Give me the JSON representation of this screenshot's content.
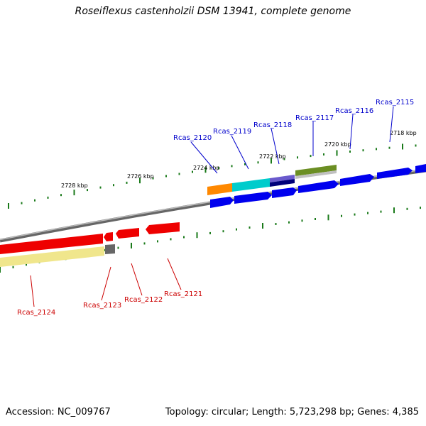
{
  "title": "Roseiflexus castenholzii DSM 13941, complete genome",
  "accession": "Accession: NC_009767",
  "topology": "Topology: circular; Length: 5,723,298 bp; Genes: 4,385",
  "kbp_labels": [
    "2728 kbp",
    "2726 kbp",
    "2724 kbp",
    "2722 kbp",
    "2720 kbp",
    "2718 kbp"
  ],
  "forward_genes": [
    "Rcas_2120",
    "Rcas_2119",
    "Rcas_2118",
    "Rcas_2117",
    "Rcas_2116",
    "Rcas_2115"
  ],
  "reverse_genes": [
    "Rcas_2124",
    "Rcas_2123",
    "Rcas_2122",
    "Rcas_2121"
  ],
  "colors": {
    "forward_label": "#0000cc",
    "reverse_label": "#cc0000",
    "tick": "#1a7a1a",
    "backbone": "#888888",
    "gene_blue": "#0000ee",
    "gene_red": "#ee0000",
    "gene_orange": "#ff8800",
    "gene_cyan": "#00cccc",
    "gene_navy": "#00007a",
    "gene_slateblue": "#6a5acd",
    "gene_olive": "#6b8e23",
    "gene_lightgray": "#c0c0c0",
    "gene_khaki": "#f0e68c",
    "gene_gray": "#666666"
  }
}
